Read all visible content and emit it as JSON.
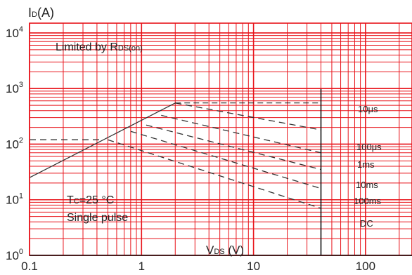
{
  "chart_data": {
    "type": "line",
    "title": "",
    "x_scale": "log",
    "y_scale": "log",
    "xlim": [
      0.1,
      260
    ],
    "ylim": [
      1,
      15000
    ],
    "grid": true,
    "ylabel": {
      "main": "I",
      "sub": "D",
      "unit": "(A)"
    },
    "xlabel": {
      "main": "V",
      "sub": "DS",
      "unit": " (V)"
    },
    "x_ticks": [
      {
        "value": 0.1,
        "label": "0.1"
      },
      {
        "value": 1,
        "label": "1"
      },
      {
        "value": 10,
        "label": "10"
      },
      {
        "value": 100,
        "label": "100"
      }
    ],
    "y_ticks": [
      {
        "value": 1,
        "base": "10",
        "exp": "0"
      },
      {
        "value": 10,
        "base": "10",
        "exp": "1"
      },
      {
        "value": 100,
        "base": "10",
        "exp": "2"
      },
      {
        "value": 1000,
        "base": "10",
        "exp": "3"
      },
      {
        "value": 10000,
        "base": "10",
        "exp": "4"
      }
    ],
    "annotations": {
      "limit": {
        "prefix": "Limited by R",
        "sub": "DS(on)"
      },
      "tc": {
        "prefix": "T",
        "sub": "C",
        "suffix": "=25 °C"
      },
      "pulse": "Single pulse"
    },
    "series": [
      {
        "label": "",
        "style": "solid",
        "points": [
          [
            0.1,
            25
          ],
          [
            2.0,
            550
          ]
        ]
      },
      {
        "label": "",
        "style": "dashed",
        "points": [
          [
            0.1,
            120
          ],
          [
            0.45,
            120
          ]
        ]
      },
      {
        "label": "10μs",
        "style": "dashed",
        "points": [
          [
            2.0,
            550
          ],
          [
            40,
            180
          ]
        ]
      },
      {
        "label": "100μs",
        "style": "dashed",
        "points": [
          [
            1.5,
            330
          ],
          [
            40,
            70
          ]
        ]
      },
      {
        "label": "1ms",
        "style": "dashed",
        "points": [
          [
            1.1,
            220
          ],
          [
            40,
            35
          ]
        ]
      },
      {
        "label": "10ms",
        "style": "dashed",
        "points": [
          [
            0.8,
            170
          ],
          [
            40,
            16
          ]
        ]
      },
      {
        "label": "100ms",
        "style": "dashed",
        "points": [
          [
            0.5,
            120
          ],
          [
            40,
            7
          ]
        ]
      }
    ],
    "dc_label": "DC",
    "vertical_limit_x": 40,
    "top_limit_y": 550,
    "colors": {
      "grid": "#e8141b",
      "curve": "#333333",
      "frame": "#111111"
    }
  }
}
